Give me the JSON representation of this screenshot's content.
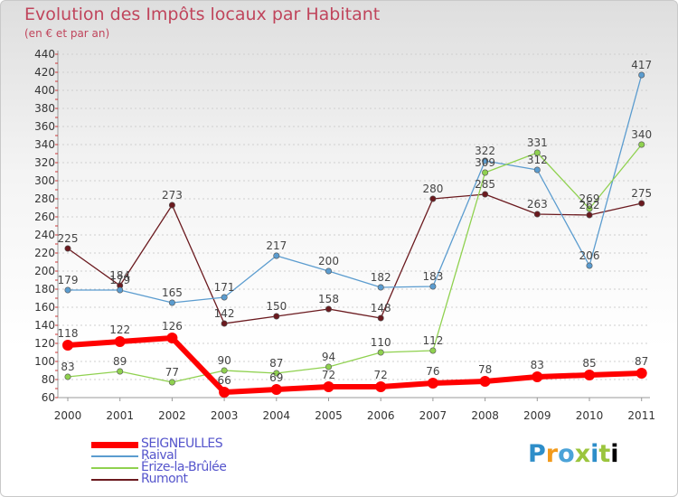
{
  "title": "Evolution des Impôts locaux par Habitant",
  "subtitle": "(en € et par an)",
  "logo": [
    "P",
    "r",
    "o",
    "x",
    "i",
    "t",
    "i"
  ],
  "chart_data": {
    "type": "line",
    "title": "Evolution des Impôts locaux par Habitant",
    "subtitle": "(en € et par an)",
    "xlabel": "",
    "ylabel": "",
    "ylim": [
      60,
      440
    ],
    "y_ticks": [
      60,
      80,
      100,
      120,
      140,
      160,
      180,
      200,
      220,
      240,
      260,
      280,
      300,
      320,
      340,
      360,
      380,
      400,
      420,
      440
    ],
    "categories": [
      "2000",
      "2001",
      "2002",
      "2003",
      "2004",
      "2005",
      "2006",
      "2007",
      "2008",
      "2009",
      "2010",
      "2011"
    ],
    "legend_position": "bottom-left",
    "series": [
      {
        "name": "Rumont",
        "color": "#6b1a1f",
        "values": [
          225,
          184,
          273,
          142,
          150,
          158,
          148,
          280,
          285,
          263,
          262,
          275
        ]
      },
      {
        "name": "Raival",
        "color": "#5b9ccf",
        "values": [
          179,
          179,
          165,
          171,
          217,
          200,
          182,
          183,
          322,
          312,
          206,
          417
        ]
      },
      {
        "name": "Érize-la-Brûlée",
        "color": "#8fd14f",
        "values": [
          83,
          89,
          77,
          90,
          87,
          94,
          110,
          112,
          309,
          331,
          269,
          340
        ]
      },
      {
        "name": "SEIGNEULLES",
        "color": "#ff0000",
        "values": [
          118,
          122,
          126,
          66,
          69,
          72,
          72,
          76,
          78,
          83,
          85,
          87
        ]
      }
    ],
    "legend_order": [
      "SEIGNEULLES",
      "Raival",
      "Érize-la-Brûlée",
      "Rumont"
    ]
  }
}
